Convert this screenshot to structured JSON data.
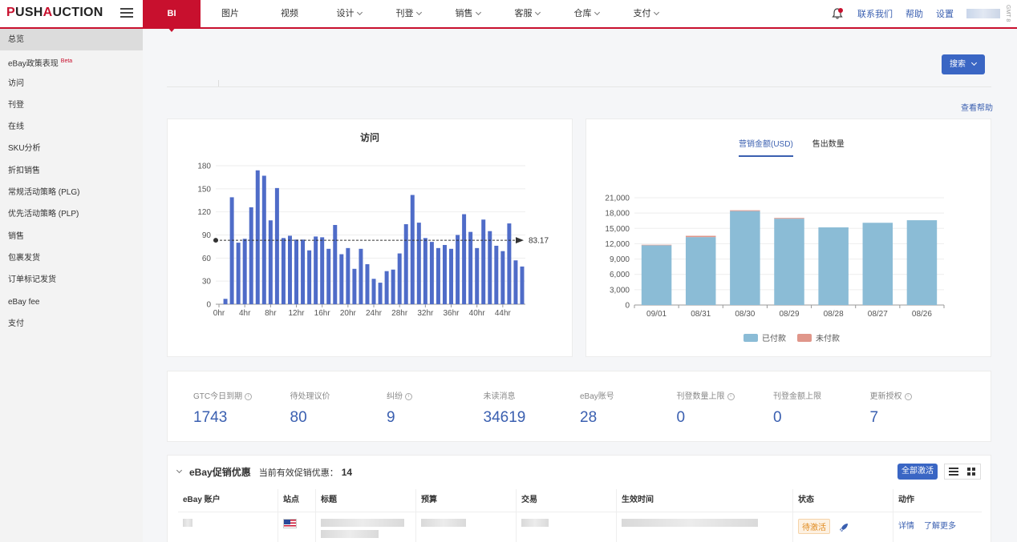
{
  "brand": {
    "logo_a": "P",
    "logo_b": "USH",
    "logo_c": "A",
    "logo_d": "UCTION"
  },
  "nav": {
    "items": [
      {
        "label": "BI",
        "active": true,
        "dropdown": false
      },
      {
        "label": "图片",
        "dropdown": false
      },
      {
        "label": "视频",
        "dropdown": false
      },
      {
        "label": "设计",
        "dropdown": true
      },
      {
        "label": "刊登",
        "dropdown": true
      },
      {
        "label": "销售",
        "dropdown": true
      },
      {
        "label": "客服",
        "dropdown": true
      },
      {
        "label": "仓库",
        "dropdown": true
      },
      {
        "label": "支付",
        "dropdown": true
      }
    ],
    "right": {
      "contact": "联系我们",
      "help": "帮助",
      "settings": "设置",
      "vertical_tag": "GMT 8"
    }
  },
  "sidebar": {
    "items": [
      {
        "label": "总览",
        "active": true
      },
      {
        "label": "eBay政策表现",
        "badge": "Beta"
      },
      {
        "label": "访问"
      },
      {
        "label": "刊登"
      },
      {
        "label": "在线"
      },
      {
        "label": "SKU分析"
      },
      {
        "label": "折扣销售"
      },
      {
        "label": "常规活动策略 (PLG)"
      },
      {
        "label": "优先活动策略 (PLP)"
      },
      {
        "label": "销售"
      },
      {
        "label": "包裹发货"
      },
      {
        "label": "订单标记发货"
      },
      {
        "label": "eBay fee"
      },
      {
        "label": "支付"
      }
    ]
  },
  "toolbar": {
    "search_label": "搜索",
    "help_link": "查看帮助"
  },
  "visits_chart": {
    "title": "访问"
  },
  "sales_chart": {
    "tabs": [
      {
        "label": "营销金额(USD)",
        "active": true
      },
      {
        "label": "售出数量"
      }
    ],
    "legend": [
      {
        "label": "已付款",
        "color": "#8bbcd6"
      },
      {
        "label": "未付款",
        "color": "#e0968a"
      }
    ]
  },
  "chart_data": [
    {
      "type": "bar",
      "title": "访问",
      "x": [
        "0hr",
        "1hr",
        "2hr",
        "3hr",
        "4hr",
        "5hr",
        "6hr",
        "7hr",
        "8hr",
        "9hr",
        "10hr",
        "11hr",
        "12hr",
        "13hr",
        "14hr",
        "15hr",
        "16hr",
        "17hr",
        "18hr",
        "19hr",
        "20hr",
        "21hr",
        "22hr",
        "23hr",
        "24hr",
        "25hr",
        "26hr",
        "27hr",
        "28hr",
        "29hr",
        "30hr",
        "31hr",
        "32hr",
        "33hr",
        "34hr",
        "35hr",
        "36hr",
        "37hr",
        "38hr",
        "39hr",
        "40hr",
        "41hr",
        "42hr",
        "43hr",
        "44hr",
        "45hr",
        "46hr",
        "47hr"
      ],
      "xticks": [
        "0hr",
        "4hr",
        "8hr",
        "12hr",
        "16hr",
        "20hr",
        "24hr",
        "28hr",
        "32hr",
        "36hr",
        "40hr",
        "44hr"
      ],
      "values": [
        0,
        7,
        139,
        80,
        85,
        126,
        174,
        167,
        109,
        151,
        86,
        89,
        84,
        84,
        70,
        88,
        87,
        72,
        103,
        65,
        73,
        46,
        72,
        52,
        33,
        28,
        43,
        45,
        66,
        104,
        142,
        106,
        86,
        81,
        73,
        77,
        72,
        90,
        117,
        94,
        73,
        110,
        95,
        76,
        69,
        105,
        57,
        49
      ],
      "ylim": [
        0,
        180
      ],
      "yticks": [
        0,
        30,
        60,
        90,
        120,
        150,
        180
      ],
      "markline": {
        "value": 83.17,
        "label": "83.17"
      },
      "color": "#4f6cc8"
    },
    {
      "type": "bar",
      "stacked": true,
      "categories": [
        "09/01",
        "08/31",
        "08/30",
        "08/29",
        "08/28",
        "08/27",
        "08/26"
      ],
      "series": [
        {
          "name": "已付款",
          "values": [
            11700,
            13300,
            18400,
            16900,
            15200,
            16100,
            16600
          ]
        },
        {
          "name": "未付款",
          "values": [
            100,
            250,
            150,
            150,
            0,
            0,
            0
          ]
        }
      ],
      "ylim": [
        0,
        21000
      ],
      "yticks": [
        "0",
        "3,000",
        "6,000",
        "9,000",
        "12,000",
        "15,000",
        "18,000",
        "21,000"
      ],
      "legend": "bottom"
    }
  ],
  "stats": [
    {
      "label": "GTC今日到期",
      "value": "1743",
      "info": true
    },
    {
      "label": "待处理议价",
      "value": "80",
      "info": false
    },
    {
      "label": "纠纷",
      "value": "9",
      "info": true
    },
    {
      "label": "未读消息",
      "value": "34619",
      "info": false
    },
    {
      "label": "eBay账号",
      "value": "28",
      "info": false
    },
    {
      "label": "刊登数量上限",
      "value": "0",
      "info": true
    },
    {
      "label": "刊登金额上限",
      "value": "0",
      "info": false
    },
    {
      "label": "更新授权",
      "value": "7",
      "info": true
    }
  ],
  "promo": {
    "title": "eBay促销优惠",
    "count_label": "当前有效促销优惠：",
    "count": "14",
    "activate_all": "全部激活",
    "columns": [
      "eBay 账户",
      "站点",
      "标题",
      "预算",
      "交易",
      "生效时间",
      "状态",
      "动作"
    ],
    "row": {
      "status": "待激活",
      "action_detail": "详情",
      "action_more": "了解更多"
    }
  }
}
